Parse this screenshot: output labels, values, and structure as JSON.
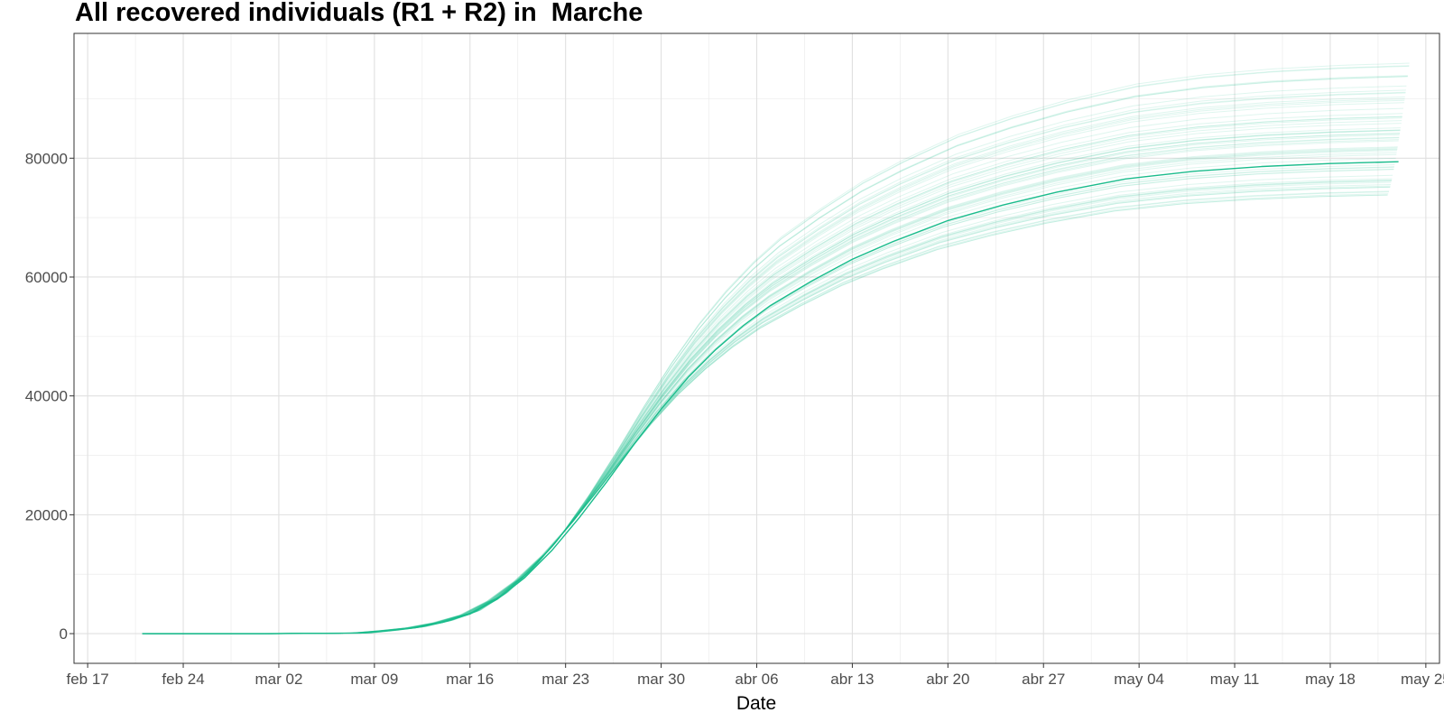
{
  "chart_data": {
    "type": "line",
    "title": "All recovered individuals (R1 + R2) in  Marche",
    "xlabel": "Date",
    "ylabel": "",
    "x_ticks": [
      "feb 17",
      "feb 24",
      "mar 02",
      "mar 09",
      "mar 16",
      "mar 23",
      "mar 30",
      "abr 06",
      "abr 13",
      "abr 20",
      "abr 27",
      "may 04",
      "may 11",
      "may 18",
      "may 25"
    ],
    "y_ticks": [
      0,
      20000,
      40000,
      60000,
      80000
    ],
    "xlim": [
      "2020-02-16",
      "2020-05-26"
    ],
    "ylim": [
      -5000,
      101000
    ],
    "grid": true,
    "legend": "none",
    "line_color": "#1abc8c",
    "median_series": {
      "x": [
        "2020-02-21",
        "2020-03-01",
        "2020-03-08",
        "2020-03-10",
        "2020-03-12",
        "2020-03-14",
        "2020-03-16",
        "2020-03-18",
        "2020-03-20",
        "2020-03-22",
        "2020-03-24",
        "2020-03-26",
        "2020-03-28",
        "2020-03-30",
        "2020-04-01",
        "2020-04-03",
        "2020-04-05",
        "2020-04-07",
        "2020-04-10",
        "2020-04-13",
        "2020-04-16",
        "2020-04-20",
        "2020-04-24",
        "2020-04-28",
        "2020-05-03",
        "2020-05-08",
        "2020-05-13",
        "2020-05-18",
        "2020-05-23"
      ],
      "y": [
        0,
        0,
        100,
        500,
        1000,
        1900,
        3300,
        5800,
        9400,
        14000,
        19500,
        25500,
        31800,
        37800,
        43200,
        47800,
        51800,
        55200,
        59300,
        63000,
        66000,
        69500,
        72100,
        74300,
        76500,
        77800,
        78600,
        79100,
        79400
      ]
    },
    "ensemble": {
      "description": "",
      "count": 60,
      "final_y_min": 73800,
      "final_y_max": 96000
    }
  }
}
